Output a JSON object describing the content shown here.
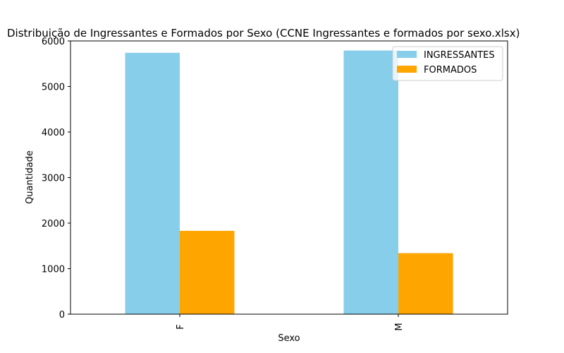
{
  "chart_data": {
    "type": "bar",
    "title": "Distribuição de Ingressantes e Formados por Sexo (CCNE Ingressantes e formados por sexo.xlsx)",
    "xlabel": "Sexo",
    "ylabel": "Quantidade",
    "categories": [
      "F",
      "M"
    ],
    "series": [
      {
        "name": "INGRESSANTES",
        "color": "#87ceeb",
        "values": [
          5740,
          5790
        ]
      },
      {
        "name": "FORMADOS",
        "color": "#ffa500",
        "values": [
          1830,
          1340
        ]
      }
    ],
    "ylim": [
      0,
      6000
    ],
    "yticks": [
      0,
      1000,
      2000,
      3000,
      4000,
      5000,
      6000
    ],
    "grid": false,
    "legend_position": "top-right"
  }
}
